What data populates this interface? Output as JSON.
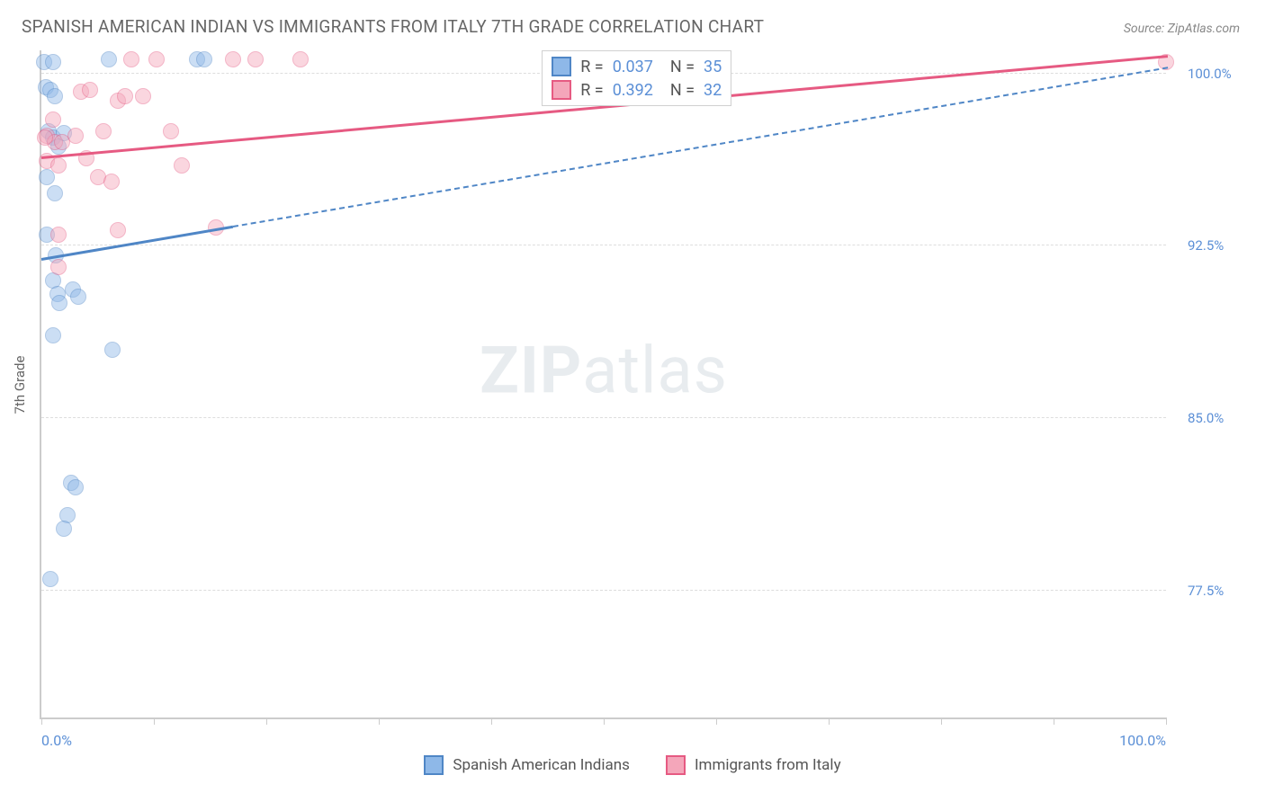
{
  "header": {
    "title": "SPANISH AMERICAN INDIAN VS IMMIGRANTS FROM ITALY 7TH GRADE CORRELATION CHART",
    "source": "Source: ZipAtlas.com"
  },
  "watermark": {
    "bold": "ZIP",
    "rest": "atlas"
  },
  "chart": {
    "type": "scatter",
    "background_color": "#ffffff",
    "grid_color": "#dddddd",
    "axis_color": "#cccccc",
    "ylabel": "7th Grade",
    "label_fontsize": 15,
    "tick_fontsize": 15,
    "tick_color": "#5b8fd6",
    "xlim": [
      0,
      100
    ],
    "ylim": [
      72,
      101
    ],
    "x_ticks": [
      0,
      10,
      20,
      30,
      40,
      50,
      60,
      70,
      80,
      90,
      100
    ],
    "x_tick_labels": {
      "0": "0.0%",
      "100": "100.0%"
    },
    "y_ticks": [
      77.5,
      85.0,
      92.5,
      100.0
    ],
    "y_tick_labels": [
      "77.5%",
      "85.0%",
      "92.5%",
      "100.0%"
    ],
    "marker_radius": 9,
    "marker_opacity": 0.45,
    "marker_stroke_opacity": 0.8,
    "marker_stroke_width": 1.5,
    "series": [
      {
        "name": "Spanish American Indians",
        "fill": "#8eb8e8",
        "stroke": "#4f86c6",
        "r_value": "0.037",
        "n_value": "35",
        "trend": {
          "x1": 0,
          "y1": 92.0,
          "x2": 100,
          "y2": 100.3,
          "solid_until_x": 17
        },
        "points": [
          [
            6.0,
            100.6
          ],
          [
            0.2,
            100.5
          ],
          [
            13.8,
            100.6
          ],
          [
            14.5,
            100.6
          ],
          [
            1.0,
            100.5
          ],
          [
            0.4,
            99.4
          ],
          [
            0.8,
            99.3
          ],
          [
            1.2,
            99.0
          ],
          [
            0.6,
            97.5
          ],
          [
            1.0,
            97.2
          ],
          [
            2.0,
            97.4
          ],
          [
            1.5,
            96.8
          ],
          [
            0.5,
            95.5
          ],
          [
            1.2,
            94.8
          ],
          [
            0.5,
            93.0
          ],
          [
            1.3,
            92.1
          ],
          [
            1.0,
            91.0
          ],
          [
            1.4,
            90.4
          ],
          [
            1.6,
            90.0
          ],
          [
            2.8,
            90.6
          ],
          [
            3.3,
            90.3
          ],
          [
            6.3,
            88.0
          ],
          [
            1.0,
            88.6
          ],
          [
            2.6,
            82.2
          ],
          [
            3.0,
            82.0
          ],
          [
            2.3,
            80.8
          ],
          [
            2.0,
            80.2
          ],
          [
            0.8,
            78.0
          ]
        ]
      },
      {
        "name": "Immigrants from Italy",
        "fill": "#f4a6ba",
        "stroke": "#e65a82",
        "r_value": "0.392",
        "n_value": "32",
        "trend": {
          "x1": 0,
          "y1": 96.4,
          "x2": 100,
          "y2": 100.8,
          "solid_until_x": 100
        },
        "points": [
          [
            100.0,
            100.5
          ],
          [
            8.0,
            100.6
          ],
          [
            10.2,
            100.6
          ],
          [
            17.0,
            100.6
          ],
          [
            19.0,
            100.6
          ],
          [
            23.0,
            100.6
          ],
          [
            3.5,
            99.2
          ],
          [
            4.3,
            99.3
          ],
          [
            6.8,
            98.8
          ],
          [
            7.4,
            99.0
          ],
          [
            9.0,
            99.0
          ],
          [
            1.0,
            98.0
          ],
          [
            3.0,
            97.3
          ],
          [
            5.5,
            97.5
          ],
          [
            11.5,
            97.5
          ],
          [
            0.5,
            97.3
          ],
          [
            1.2,
            97.0
          ],
          [
            1.8,
            97.0
          ],
          [
            0.3,
            97.2
          ],
          [
            0.5,
            96.2
          ],
          [
            1.5,
            96.0
          ],
          [
            4.0,
            96.3
          ],
          [
            5.0,
            95.5
          ],
          [
            6.2,
            95.3
          ],
          [
            12.5,
            96.0
          ],
          [
            6.8,
            93.2
          ],
          [
            1.5,
            93.0
          ],
          [
            15.5,
            93.3
          ],
          [
            1.5,
            91.6
          ]
        ]
      }
    ],
    "rn_legend": {
      "left_pct": 44.5,
      "top_pct": 0
    },
    "bottom_legend_fontsize": 17
  }
}
